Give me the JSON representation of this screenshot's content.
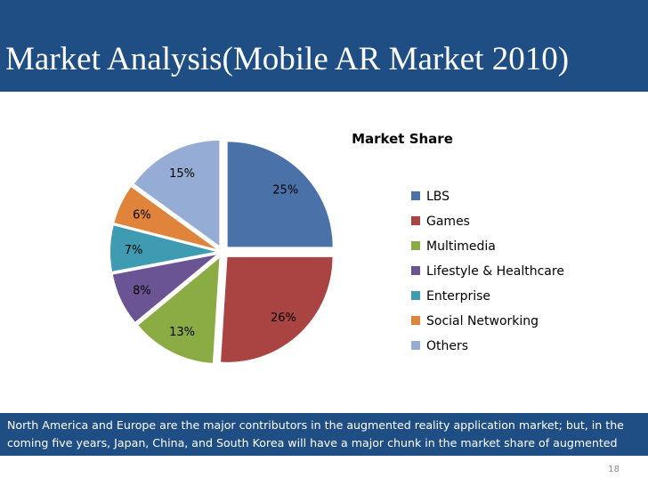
{
  "slide": {
    "title": "Market Analysis(Mobile AR Market 2010)",
    "footer_text": "North America and Europe are the major contributors in the augmented reality application market; but, in the coming five years, Japan, China, and South Korea will have a major chunk in the market share of augmented reality.",
    "page_number": "18"
  },
  "colors": {
    "header_bg": "#1f4e85",
    "footer_bg": "#1f4e85"
  },
  "chart_data": {
    "type": "pie",
    "title": "Market Share",
    "legend_position": "right",
    "categories": [
      "LBS",
      "Games",
      "Multimedia",
      "Lifestyle & Healthcare",
      "Enterprise",
      "Social Networking",
      "Others"
    ],
    "values": [
      25,
      26,
      13,
      8,
      7,
      6,
      15
    ],
    "labels": [
      "25%",
      "26%",
      "13%",
      "8%",
      "7%",
      "6%",
      "15%"
    ],
    "colors": [
      "#4a72a8",
      "#a94442",
      "#8bac45",
      "#6b5494",
      "#3f9bb1",
      "#e0833b",
      "#95acd4"
    ]
  }
}
